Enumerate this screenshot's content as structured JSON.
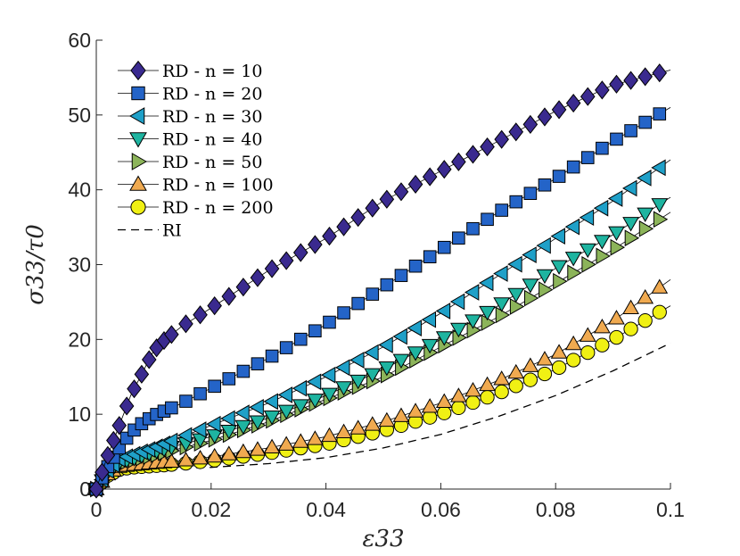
{
  "chart_data": {
    "type": "line",
    "title": "",
    "xlabel": "ε33",
    "ylabel": "σ33/τ0",
    "xlim": [
      0,
      0.1
    ],
    "ylim": [
      0,
      60
    ],
    "xticks": [
      0,
      0.02,
      0.04,
      0.06,
      0.08,
      0.1
    ],
    "xtick_labels": [
      "0",
      "0.02",
      "0.04",
      "0.06",
      "0.08",
      "0.1"
    ],
    "yticks": [
      0,
      10,
      20,
      30,
      40,
      50,
      60
    ],
    "ytick_labels": [
      "0",
      "10",
      "20",
      "30",
      "40",
      "50",
      "60"
    ],
    "grid": false,
    "legend_position": "top-left",
    "series": [
      {
        "name": "RD - n = 10",
        "marker": "diamond",
        "color": "#3a2a8f",
        "x": [
          0,
          0.002,
          0.004,
          0.006,
          0.008,
          0.01,
          0.012,
          0.015,
          0.02,
          0.03,
          0.04,
          0.05,
          0.06,
          0.07,
          0.08,
          0.09,
          0.1
        ],
        "values": [
          0,
          4.5,
          8.5,
          12.5,
          15.5,
          18.5,
          20.0,
          21.8,
          24.2,
          29.2,
          33.5,
          38.5,
          42.5,
          46.5,
          50.5,
          54.0,
          56.0
        ]
      },
      {
        "name": "RD - n = 20",
        "marker": "square",
        "color": "#2464c8",
        "x": [
          0,
          0.002,
          0.004,
          0.006,
          0.008,
          0.01,
          0.015,
          0.02,
          0.03,
          0.04,
          0.05,
          0.06,
          0.07,
          0.08,
          0.09,
          0.1
        ],
        "values": [
          0,
          3.0,
          5.5,
          7.5,
          8.8,
          9.8,
          11.5,
          13.5,
          17.5,
          22.0,
          27.0,
          32.0,
          37.0,
          41.5,
          46.5,
          51.0
        ]
      },
      {
        "name": "RD - n = 30",
        "marker": "triangle-left",
        "color": "#1fa0c8",
        "x": [
          0,
          0.002,
          0.004,
          0.006,
          0.01,
          0.015,
          0.02,
          0.03,
          0.04,
          0.05,
          0.06,
          0.07,
          0.08,
          0.09,
          0.1
        ],
        "values": [
          0,
          2.5,
          4.0,
          4.5,
          5.5,
          7.0,
          8.5,
          11.5,
          15.0,
          19.0,
          23.5,
          28.5,
          33.5,
          38.5,
          44.0
        ]
      },
      {
        "name": "RD - n = 40",
        "marker": "triangle-down",
        "color": "#1eb4a0",
        "x": [
          0,
          0.002,
          0.004,
          0.006,
          0.01,
          0.015,
          0.02,
          0.03,
          0.04,
          0.05,
          0.06,
          0.07,
          0.08,
          0.09,
          0.1
        ],
        "values": [
          0,
          2.3,
          3.6,
          4.0,
          5.0,
          6.0,
          7.0,
          9.5,
          12.5,
          16.0,
          20.0,
          24.5,
          29.5,
          34.0,
          39.0
        ]
      },
      {
        "name": "RD - n = 50",
        "marker": "triangle-right",
        "color": "#8cb45a",
        "x": [
          0,
          0.002,
          0.004,
          0.006,
          0.01,
          0.015,
          0.02,
          0.03,
          0.04,
          0.05,
          0.06,
          0.07,
          0.08,
          0.09,
          0.1
        ],
        "values": [
          0,
          2.2,
          3.4,
          3.8,
          4.5,
          5.5,
          6.5,
          9.0,
          12.0,
          15.0,
          19.0,
          23.0,
          27.5,
          32.0,
          37.0
        ]
      },
      {
        "name": "RD - n = 100",
        "marker": "triangle-up",
        "color": "#f0aa50",
        "x": [
          0,
          0.002,
          0.004,
          0.006,
          0.01,
          0.015,
          0.02,
          0.03,
          0.04,
          0.05,
          0.06,
          0.07,
          0.08,
          0.09,
          0.1
        ],
        "values": [
          0,
          2.0,
          3.0,
          3.2,
          3.5,
          3.8,
          4.3,
          5.5,
          7.0,
          9.0,
          11.5,
          14.5,
          18.0,
          22.5,
          28.0
        ]
      },
      {
        "name": "RD - n = 200",
        "marker": "circle",
        "color": "#f0f014",
        "x": [
          0,
          0.002,
          0.004,
          0.006,
          0.01,
          0.015,
          0.02,
          0.03,
          0.04,
          0.05,
          0.06,
          0.07,
          0.08,
          0.09,
          0.1
        ],
        "values": [
          0,
          1.8,
          2.6,
          2.9,
          3.1,
          3.4,
          3.8,
          4.8,
          6.0,
          7.8,
          10.0,
          12.8,
          16.0,
          20.0,
          24.5
        ]
      },
      {
        "name": "RI",
        "marker": "none",
        "line_style": "dashed",
        "color": "#000000",
        "x": [
          0,
          0.002,
          0.005,
          0.01,
          0.02,
          0.03,
          0.04,
          0.05,
          0.06,
          0.07,
          0.08,
          0.09,
          0.1
        ],
        "values": [
          0,
          1.8,
          2.5,
          2.7,
          2.9,
          3.4,
          4.2,
          5.5,
          7.3,
          9.7,
          12.5,
          15.8,
          19.5
        ]
      }
    ]
  }
}
